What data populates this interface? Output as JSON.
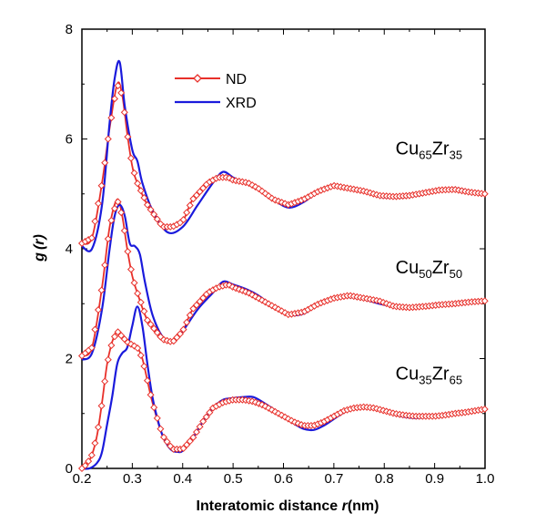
{
  "chart_data": {
    "type": "line",
    "title": "",
    "xlabel_main": "Interatomic distance ",
    "xlabel_var": "r",
    "xlabel_unit": "(nm)",
    "ylabel_main": "g",
    "ylabel_arg": "(r)",
    "xlim": [
      0.2,
      1.0
    ],
    "ylim": [
      0,
      8
    ],
    "xticks": [
      "0.2",
      "0.3",
      "0.4",
      "0.5",
      "0.6",
      "0.7",
      "0.8",
      "0.9",
      "1.0"
    ],
    "yticks": [
      "0",
      "2",
      "4",
      "6",
      "8"
    ],
    "legend": [
      {
        "name": "ND",
        "color": "#e8302a",
        "marker": "diamond"
      },
      {
        "name": "XRD",
        "color": "#1a1adc",
        "marker": "none"
      }
    ],
    "annotations": [
      {
        "base": "Cu",
        "sub1": "65",
        "mid": "Zr",
        "sub2": "35",
        "x": 0.955,
        "y": 5.72
      },
      {
        "base": "Cu",
        "sub1": "50",
        "mid": "Zr",
        "sub2": "50",
        "x": 0.955,
        "y": 3.55
      },
      {
        "base": "Cu",
        "sub1": "35",
        "mid": "Zr",
        "sub2": "65",
        "x": 0.955,
        "y": 1.62
      }
    ],
    "series": [
      {
        "name": "ND",
        "group": "Cu65Zr35",
        "x": [
          0.2,
          0.22,
          0.24,
          0.255,
          0.27,
          0.28,
          0.29,
          0.3,
          0.31,
          0.33,
          0.36,
          0.38,
          0.4,
          0.42,
          0.45,
          0.47,
          0.49,
          0.5,
          0.53,
          0.55,
          0.58,
          0.61,
          0.64,
          0.67,
          0.7,
          0.73,
          0.76,
          0.79,
          0.82,
          0.85,
          0.88,
          0.91,
          0.94,
          0.97,
          1.0
        ],
        "y": [
          4.1,
          4.2,
          5.2,
          6.2,
          7.0,
          6.8,
          6.1,
          5.5,
          5.2,
          4.8,
          4.4,
          4.4,
          4.5,
          4.9,
          5.2,
          5.3,
          5.3,
          5.25,
          5.2,
          5.1,
          4.9,
          4.8,
          4.9,
          5.05,
          5.15,
          5.1,
          5.05,
          4.97,
          4.95,
          4.97,
          5.02,
          5.07,
          5.08,
          5.03,
          5.0
        ]
      },
      {
        "name": "XRD",
        "group": "Cu65Zr35",
        "x": [
          0.2,
          0.22,
          0.24,
          0.255,
          0.265,
          0.275,
          0.285,
          0.3,
          0.31,
          0.32,
          0.34,
          0.37,
          0.4,
          0.43,
          0.46,
          0.48,
          0.5,
          0.52,
          0.53,
          0.55,
          0.58,
          0.61,
          0.64,
          0.67,
          0.7,
          0.73,
          0.76,
          0.79,
          0.82,
          0.85,
          0.88,
          0.91,
          0.94,
          0.97,
          1.0
        ],
        "y": [
          4.05,
          4.0,
          4.8,
          6.3,
          7.1,
          7.4,
          6.6,
          5.8,
          5.6,
          5.2,
          4.7,
          4.3,
          4.4,
          4.8,
          5.2,
          5.4,
          5.3,
          5.2,
          5.2,
          5.1,
          4.9,
          4.75,
          4.85,
          5.05,
          5.15,
          5.1,
          5.05,
          4.95,
          4.93,
          4.95,
          5.0,
          5.07,
          5.1,
          5.05,
          5.0
        ]
      },
      {
        "name": "ND",
        "group": "Cu50Zr50",
        "x": [
          0.2,
          0.22,
          0.24,
          0.255,
          0.27,
          0.28,
          0.29,
          0.3,
          0.31,
          0.33,
          0.36,
          0.38,
          0.4,
          0.42,
          0.45,
          0.47,
          0.49,
          0.5,
          0.53,
          0.55,
          0.58,
          0.61,
          0.64,
          0.67,
          0.7,
          0.73,
          0.76,
          0.79,
          0.82,
          0.85,
          0.88,
          0.91,
          0.94,
          0.97,
          1.0
        ],
        "y": [
          2.05,
          2.2,
          3.3,
          4.4,
          4.9,
          4.6,
          4.0,
          3.5,
          3.2,
          2.7,
          2.35,
          2.3,
          2.5,
          2.9,
          3.2,
          3.3,
          3.35,
          3.3,
          3.2,
          3.1,
          2.95,
          2.8,
          2.85,
          3.0,
          3.1,
          3.15,
          3.1,
          3.05,
          2.95,
          2.93,
          2.95,
          2.98,
          3.0,
          3.03,
          3.05
        ]
      },
      {
        "name": "XRD",
        "group": "Cu50Zr50",
        "x": [
          0.2,
          0.22,
          0.24,
          0.255,
          0.265,
          0.275,
          0.285,
          0.295,
          0.305,
          0.315,
          0.325,
          0.34,
          0.36,
          0.38,
          0.4,
          0.43,
          0.46,
          0.48,
          0.5,
          0.53,
          0.55,
          0.58,
          0.61,
          0.64,
          0.67,
          0.7,
          0.73,
          0.76,
          0.79,
          0.82,
          0.85,
          0.88,
          0.91,
          0.94,
          0.97,
          1.0
        ],
        "y": [
          1.98,
          2.1,
          2.9,
          4.0,
          4.6,
          4.8,
          4.6,
          4.1,
          4.05,
          3.9,
          3.4,
          2.8,
          2.4,
          2.3,
          2.5,
          2.9,
          3.2,
          3.4,
          3.35,
          3.25,
          3.15,
          2.95,
          2.8,
          2.82,
          3.0,
          3.1,
          3.12,
          3.08,
          3.0,
          2.95,
          2.92,
          2.95,
          2.98,
          3.0,
          3.02,
          3.05
        ]
      },
      {
        "name": "ND",
        "group": "Cu35Zr65",
        "x": [
          0.2,
          0.21,
          0.22,
          0.23,
          0.24,
          0.25,
          0.26,
          0.27,
          0.28,
          0.29,
          0.3,
          0.31,
          0.32,
          0.33,
          0.34,
          0.36,
          0.38,
          0.4,
          0.42,
          0.44,
          0.46,
          0.48,
          0.5,
          0.52,
          0.54,
          0.56,
          0.58,
          0.6,
          0.62,
          0.64,
          0.66,
          0.68,
          0.7,
          0.72,
          0.74,
          0.76,
          0.78,
          0.8,
          0.82,
          0.84,
          0.86,
          0.88,
          0.9,
          0.92,
          0.94,
          0.96,
          0.98,
          1.0
        ],
        "y": [
          0.0,
          0.08,
          0.25,
          0.6,
          1.2,
          1.9,
          2.3,
          2.5,
          2.4,
          2.3,
          2.25,
          2.2,
          2.0,
          1.6,
          1.2,
          0.6,
          0.35,
          0.35,
          0.55,
          0.85,
          1.1,
          1.2,
          1.25,
          1.25,
          1.22,
          1.15,
          1.05,
          0.95,
          0.85,
          0.78,
          0.78,
          0.85,
          0.95,
          1.05,
          1.1,
          1.12,
          1.1,
          1.05,
          1.0,
          0.97,
          0.95,
          0.95,
          0.95,
          0.97,
          1.0,
          1.02,
          1.05,
          1.08
        ]
      },
      {
        "name": "XRD",
        "group": "Cu35Zr65",
        "x": [
          0.2,
          0.215,
          0.23,
          0.24,
          0.25,
          0.26,
          0.27,
          0.28,
          0.29,
          0.3,
          0.31,
          0.32,
          0.33,
          0.34,
          0.35,
          0.36,
          0.37,
          0.38,
          0.39,
          0.4,
          0.42,
          0.44,
          0.46,
          0.48,
          0.5,
          0.52,
          0.54,
          0.56,
          0.58,
          0.6,
          0.62,
          0.64,
          0.66,
          0.68,
          0.7,
          0.72,
          0.74,
          0.76,
          0.78,
          0.8,
          0.82,
          0.84,
          0.86,
          0.88,
          0.9,
          0.92,
          0.94,
          0.96,
          0.98,
          1.0
        ],
        "y": [
          0.0,
          0.0,
          0.1,
          0.3,
          0.8,
          1.3,
          1.9,
          2.1,
          2.2,
          2.6,
          2.95,
          2.6,
          1.9,
          1.3,
          0.9,
          0.6,
          0.42,
          0.32,
          0.3,
          0.32,
          0.55,
          0.85,
          1.1,
          1.25,
          1.28,
          1.3,
          1.3,
          1.2,
          1.08,
          0.95,
          0.82,
          0.72,
          0.7,
          0.78,
          0.9,
          1.02,
          1.1,
          1.13,
          1.1,
          1.05,
          0.98,
          0.94,
          0.92,
          0.93,
          0.95,
          0.97,
          0.99,
          1.02,
          1.05,
          1.08
        ]
      }
    ]
  }
}
